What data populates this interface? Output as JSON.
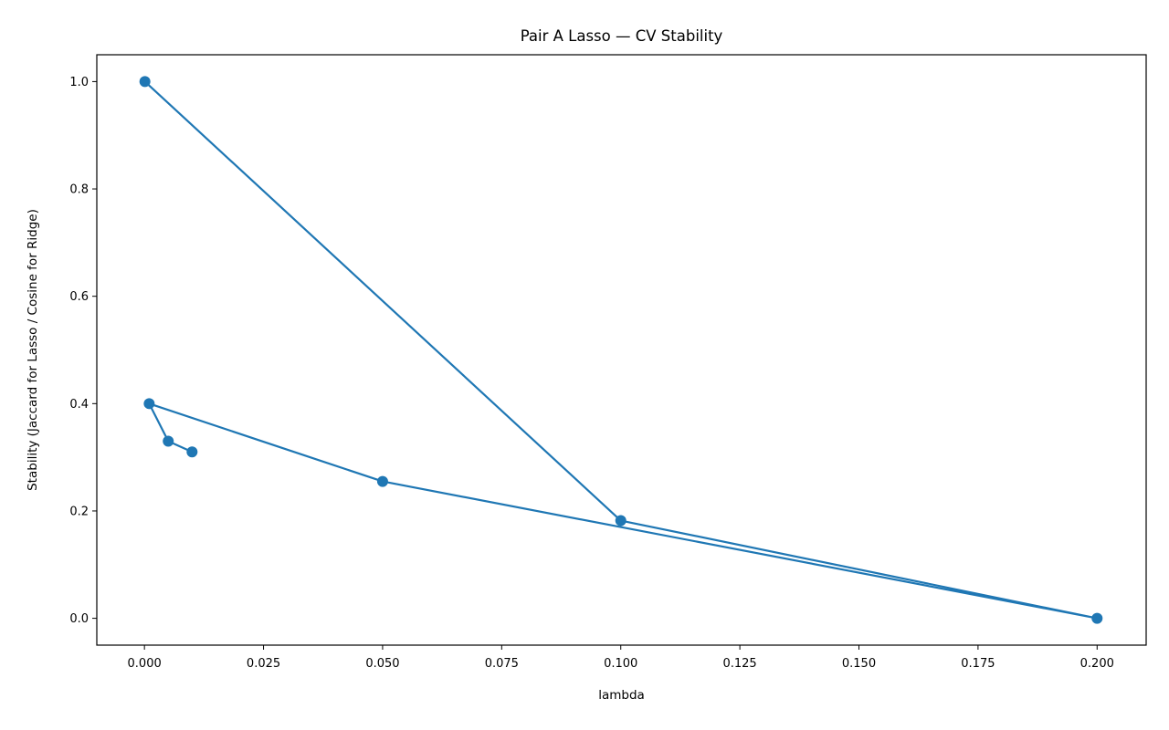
{
  "chart_data": {
    "type": "line",
    "title": "Pair A Lasso — CV Stability",
    "xlabel": "lambda",
    "ylabel": "Stability (Jaccard for Lasso / Cosine for Ridge)",
    "xlim": [
      -0.01,
      0.2103
    ],
    "ylim": [
      -0.05,
      1.05
    ],
    "xticks": [
      0.0,
      0.025,
      0.05,
      0.075,
      0.1,
      0.125,
      0.15,
      0.175,
      0.2
    ],
    "xtick_labels": [
      "0.000",
      "0.025",
      "0.050",
      "0.075",
      "0.100",
      "0.125",
      "0.150",
      "0.175",
      "0.200"
    ],
    "yticks": [
      0.0,
      0.2,
      0.4,
      0.6,
      0.8,
      1.0
    ],
    "ytick_labels": [
      "0.0",
      "0.2",
      "0.4",
      "0.6",
      "0.8",
      "1.0"
    ],
    "grid": false,
    "markers": true,
    "color": "#1f77b4",
    "series": [
      {
        "x": [
          0.0001,
          0.1,
          0.2,
          0.05,
          0.001,
          0.005,
          0.01
        ],
        "y": [
          1.0,
          0.182,
          0.0,
          0.255,
          0.4,
          0.33,
          0.31
        ]
      }
    ]
  }
}
